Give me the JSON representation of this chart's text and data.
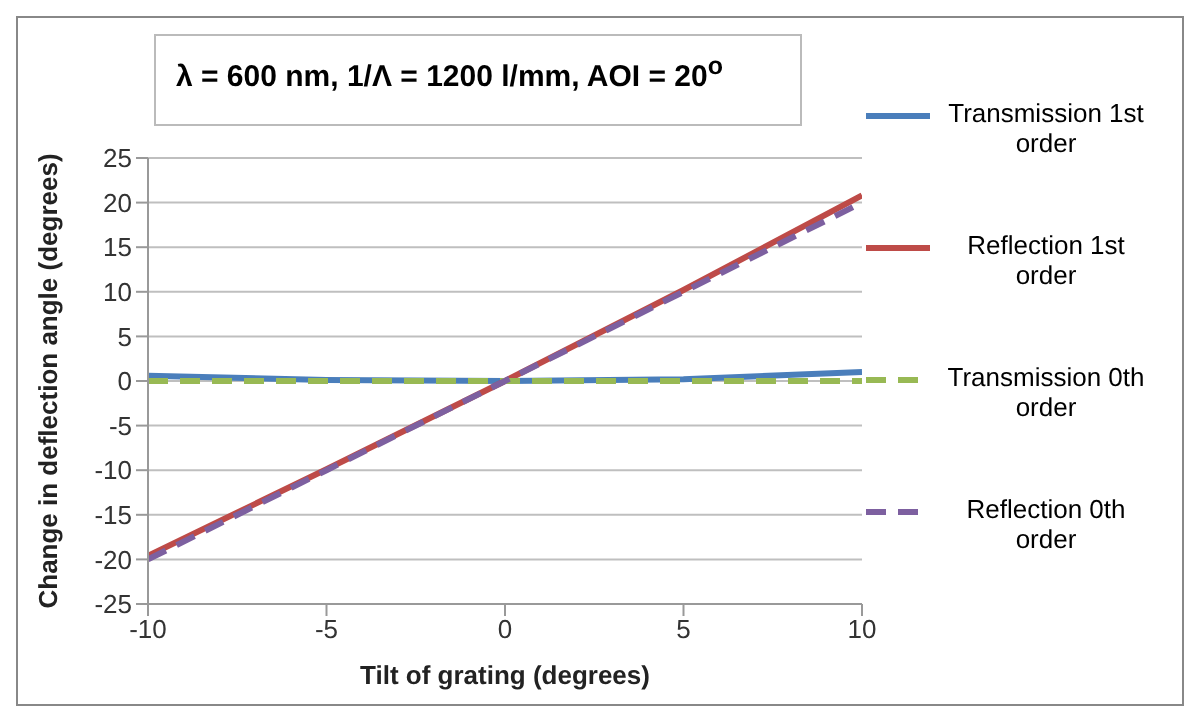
{
  "chart_data": {
    "type": "line",
    "title": "λ = 600 nm, 1/Λ = 1200 l/mm,  AOI = 20$^{o}$",
    "xlabel": "Tilt of grating (degrees)",
    "ylabel": "Change in deflection angle (degrees)",
    "xlim": [
      -10,
      10
    ],
    "xticks": [
      -10,
      -5,
      0,
      5,
      10
    ],
    "ylim": [
      -25,
      25
    ],
    "yticks": [
      -25,
      -20,
      -15,
      -10,
      -5,
      0,
      5,
      10,
      15,
      20,
      25
    ],
    "grid": "y",
    "legend": "right",
    "marker": "none",
    "series": [
      {
        "name": "Transmission 1st order",
        "color": "#4a7ebb",
        "line_style": "solid",
        "x": [
          -10,
          -5,
          0,
          5,
          10
        ],
        "values": [
          0.6,
          0.1,
          0,
          0.2,
          1
        ]
      },
      {
        "name": "Reflection 1st order",
        "color": "#be4b48",
        "line_style": "solid",
        "x": [
          -10,
          -5,
          0,
          5,
          10
        ],
        "values": [
          -19.6,
          -9.9,
          0,
          10.2,
          20.8
        ]
      },
      {
        "name": "Transmission 0th order",
        "color": "#98b954",
        "line_style": "dashed",
        "x": [
          -10,
          -5,
          0,
          5,
          10
        ],
        "values": [
          0,
          0,
          0,
          0,
          0
        ]
      },
      {
        "name": "Reflection 0th order",
        "color": "#7d60a0",
        "line_style": "dashed",
        "x": [
          -10,
          -5,
          0,
          5,
          10
        ],
        "values": [
          -20,
          -10,
          0,
          10,
          20
        ]
      }
    ]
  }
}
